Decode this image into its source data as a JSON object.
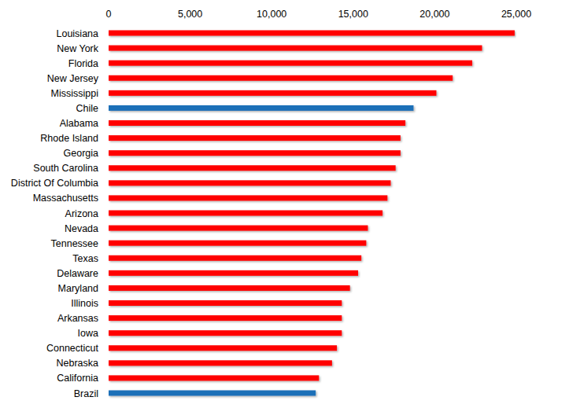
{
  "chart_data": {
    "type": "bar",
    "orientation": "horizontal",
    "categories": [
      "Louisiana",
      "New York",
      "Florida",
      "New Jersey",
      "Mississippi",
      "Chile",
      "Alabama",
      "Rhode Island",
      "Georgia",
      "South Carolina",
      "District Of Columbia",
      "Massachusetts",
      "Arizona",
      "Nevada",
      "Tennessee",
      "Texas",
      "Delaware",
      "Maryland",
      "Illinois",
      "Arkansas",
      "Iowa",
      "Connecticut",
      "Nebraska",
      "California",
      "Brazil"
    ],
    "values": [
      24900,
      22900,
      22300,
      21100,
      20100,
      18700,
      18200,
      17900,
      17900,
      17600,
      17300,
      17100,
      16800,
      15900,
      15800,
      15500,
      15300,
      14800,
      14300,
      14300,
      14300,
      14000,
      13700,
      12900,
      12700
    ],
    "colors": [
      "#ff0000",
      "#ff0000",
      "#ff0000",
      "#ff0000",
      "#ff0000",
      "#1f6fb8",
      "#ff0000",
      "#ff0000",
      "#ff0000",
      "#ff0000",
      "#ff0000",
      "#ff0000",
      "#ff0000",
      "#ff0000",
      "#ff0000",
      "#ff0000",
      "#ff0000",
      "#ff0000",
      "#ff0000",
      "#ff0000",
      "#ff0000",
      "#ff0000",
      "#ff0000",
      "#ff0000",
      "#1f6fb8"
    ],
    "xlim": [
      0,
      25000
    ],
    "xticks": [
      0,
      {
        "value": 5000,
        "label": "5,000"
      },
      {
        "value": 10000,
        "label": "10,000"
      },
      {
        "value": 15000,
        "label": "15,000"
      },
      {
        "value": 20000,
        "label": "20,000"
      },
      {
        "value": 25000,
        "label": "25,000"
      }
    ],
    "grid": false
  }
}
